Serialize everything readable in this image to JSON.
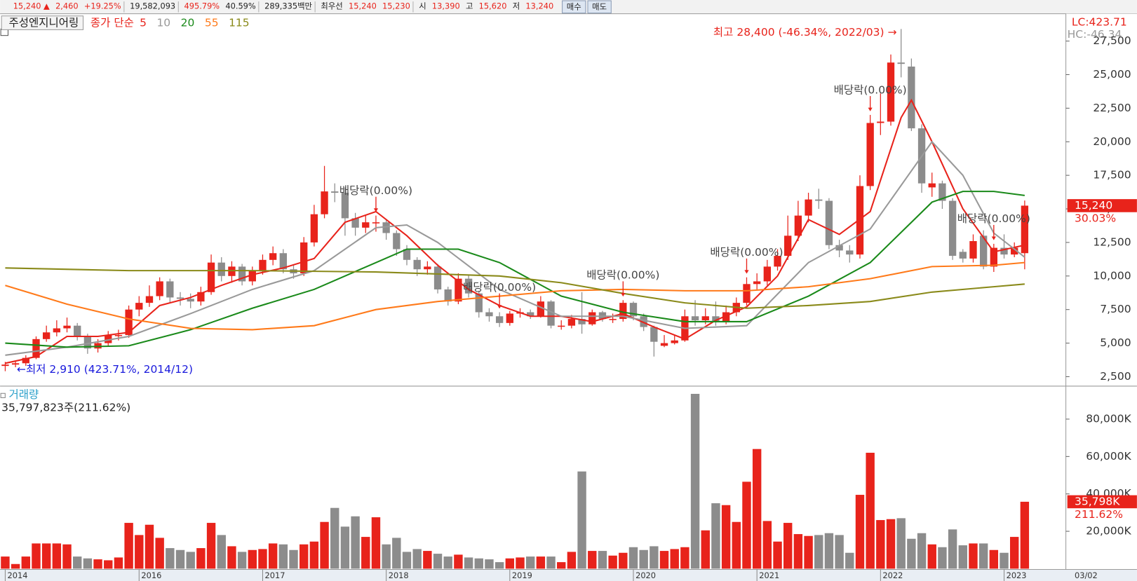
{
  "header": {
    "items": [
      {
        "text": "15,240 ▲",
        "color": "#e8231b"
      },
      {
        "text": "2,460",
        "color": "#e8231b"
      },
      {
        "text": "+19.25%",
        "color": "#e8231b"
      },
      {
        "text": "19,582,093",
        "color": "#222222"
      },
      {
        "text": "495.79%",
        "color": "#e8231b"
      },
      {
        "text": "40.59%",
        "color": "#222222"
      },
      {
        "text": "289,335백만",
        "color": "#222222"
      },
      {
        "text": "최우선",
        "color": "#222222"
      },
      {
        "text": "15,240",
        "color": "#e8231b"
      },
      {
        "text": "15,230",
        "color": "#e8231b"
      },
      {
        "text": "시",
        "color": "#222222"
      },
      {
        "text": "13,390",
        "color": "#e8231b"
      },
      {
        "text": "고",
        "color": "#222222"
      },
      {
        "text": "15,620",
        "color": "#e8231b"
      },
      {
        "text": "저",
        "color": "#222222"
      },
      {
        "text": "13,240",
        "color": "#e8231b"
      }
    ],
    "buttons": [
      "매수",
      "매도"
    ]
  },
  "chart_data": {
    "type": "candlestick",
    "title": "주성엔지니어링",
    "legend_label": "종가 단순",
    "up_color": "#e8231b",
    "down_color": "#8c8c8c",
    "open": [
      3300,
      3400,
      3500,
      3900,
      5300,
      5800,
      6100,
      6300,
      5500,
      4600,
      5000,
      5600,
      5600,
      7500,
      8000,
      8500,
      9600,
      8400,
      8300,
      8100,
      8800,
      11000,
      10000,
      10700,
      9600,
      10400,
      11200,
      11700,
      10500,
      10200,
      12500,
      14600,
      16300,
      16200,
      14300,
      13600,
      14000,
      14000,
      13200,
      12000,
      11200,
      10500,
      10700,
      9000,
      8100,
      9800,
      8700,
      7300,
      7000,
      6500,
      7200,
      7300,
      7000,
      8100,
      6300,
      6300,
      6800,
      6400,
      7300,
      6800,
      6800,
      8000,
      7000,
      6200,
      4800,
      5000,
      5200,
      7000,
      6700,
      7000,
      6600,
      7300,
      8000,
      9400,
      9600,
      10700,
      11500,
      13000,
      14500,
      15700,
      15600,
      12300,
      11900,
      11600,
      16700,
      21400,
      21500,
      25900,
      25600,
      21000,
      16600,
      16900,
      15600,
      11800,
      11300,
      13000,
      10700,
      12100,
      11600,
      11700
    ],
    "high": [
      3600,
      3700,
      4100,
      5500,
      6300,
      6700,
      6900,
      6500,
      5700,
      5300,
      5900,
      6000,
      7800,
      8500,
      9300,
      9900,
      9800,
      8800,
      8700,
      9200,
      11600,
      11400,
      11100,
      10900,
      10700,
      11600,
      12200,
      12000,
      10800,
      12900,
      15300,
      18200,
      16900,
      16600,
      14700,
      14500,
      14500,
      14200,
      13400,
      12300,
      11400,
      11100,
      10900,
      9200,
      10200,
      10100,
      8900,
      7600,
      7300,
      7400,
      7600,
      7500,
      8500,
      8200,
      6700,
      7100,
      8800,
      7500,
      7400,
      7200,
      8200,
      8100,
      7200,
      6300,
      5600,
      5600,
      7500,
      8200,
      7600,
      8100,
      7800,
      8400,
      9900,
      10200,
      11200,
      12000,
      14500,
      15600,
      16200,
      16500,
      15800,
      12700,
      12300,
      17500,
      22000,
      23600,
      26500,
      28400,
      26200,
      21300,
      17700,
      17100,
      15800,
      12000,
      13100,
      13400,
      12400,
      13100,
      12500,
      15620
    ],
    "low": [
      2910,
      3200,
      3300,
      3800,
      5100,
      5500,
      5800,
      5200,
      4200,
      4300,
      4800,
      5200,
      5400,
      7000,
      7700,
      8200,
      8000,
      7800,
      7600,
      7800,
      8600,
      9600,
      9500,
      9300,
      9300,
      10100,
      10800,
      10200,
      9800,
      10000,
      12200,
      14300,
      15500,
      13000,
      13000,
      13200,
      13300,
      12700,
      11500,
      10800,
      10000,
      10100,
      8700,
      7800,
      7900,
      8400,
      6900,
      6600,
      6200,
      6300,
      6900,
      6800,
      6900,
      6100,
      6000,
      6100,
      5700,
      6300,
      6600,
      6500,
      6600,
      6700,
      5900,
      4000,
      4700,
      4900,
      5100,
      6300,
      6400,
      6300,
      6400,
      7000,
      7800,
      9000,
      9300,
      10400,
      11200,
      12600,
      14000,
      15000,
      12000,
      11400,
      11000,
      11300,
      16400,
      20500,
      21200,
      24800,
      20800,
      16200,
      15900,
      15000,
      11200,
      11000,
      11000,
      10500,
      10300,
      11300,
      11400,
      10500
    ],
    "close": [
      3400,
      3500,
      3900,
      5300,
      5800,
      6100,
      6300,
      5500,
      4600,
      5000,
      5600,
      5600,
      7500,
      8000,
      8500,
      9600,
      8400,
      8300,
      8100,
      8800,
      11000,
      10000,
      10700,
      9600,
      10400,
      11200,
      11700,
      10500,
      10200,
      12500,
      14600,
      16300,
      16200,
      14300,
      13600,
      14000,
      14000,
      13200,
      12000,
      11200,
      10500,
      10700,
      9000,
      8100,
      9800,
      8700,
      7300,
      7000,
      6500,
      7200,
      7300,
      7000,
      8100,
      6300,
      6300,
      6800,
      6400,
      7300,
      6800,
      6800,
      8000,
      7000,
      6200,
      5100,
      5000,
      5200,
      7000,
      6700,
      7000,
      6600,
      7300,
      8000,
      9400,
      9600,
      10700,
      11500,
      13000,
      14500,
      15700,
      15600,
      12300,
      11900,
      11600,
      16700,
      21400,
      21500,
      25900,
      25800,
      21000,
      16900,
      16900,
      15600,
      11500,
      11300,
      12600,
      10700,
      12100,
      11600,
      12100,
      15240
    ],
    "current_label": "15,240",
    "current_change": "30.03%",
    "xlim": [
      -0.5,
      103
    ],
    "xticks": [
      {
        "value": 0,
        "label": "2014"
      },
      {
        "value": 13,
        "label": "2016"
      },
      {
        "value": 25,
        "label": "2017"
      },
      {
        "value": 37,
        "label": "2018"
      },
      {
        "value": 49,
        "label": "2019"
      },
      {
        "value": 61,
        "label": "2020"
      },
      {
        "value": 73,
        "label": "2021"
      },
      {
        "value": 85,
        "label": "2022"
      },
      {
        "value": 97,
        "label": "2023"
      }
    ],
    "date_label": "03/02",
    "ylim": [
      1850,
      29480
    ],
    "yticks": [
      {
        "value": 2500,
        "label": "2,500"
      },
      {
        "value": 5000,
        "label": "5,000"
      },
      {
        "value": 7500,
        "label": "7,500"
      },
      {
        "value": 10000,
        "label": "10,000"
      },
      {
        "value": 12500,
        "label": "12,500"
      },
      {
        "value": 15000,
        "label": "15,000"
      },
      {
        "value": 17500,
        "label": "17,500"
      },
      {
        "value": 20000,
        "label": "20,000"
      },
      {
        "value": 22500,
        "label": "22,500"
      },
      {
        "value": 25000,
        "label": "25,000"
      },
      {
        "value": 27500,
        "label": "27,500"
      }
    ],
    "lc_label": "LC:423.71",
    "hc_label": "HC:-46.34",
    "moving_averages": [
      {
        "name": "5",
        "color": "#e8231b",
        "x": [
          0,
          3,
          6,
          9,
          12,
          15,
          18,
          21,
          24,
          27,
          30,
          33,
          36,
          39,
          42,
          45,
          48,
          51,
          54,
          57,
          60,
          63,
          66,
          69,
          72,
          75,
          78,
          81,
          84,
          87,
          88,
          90,
          93,
          96,
          99
        ],
        "values": [
          3500,
          4000,
          5500,
          5500,
          5800,
          7800,
          8400,
          9300,
          10100,
          10600,
          11300,
          14000,
          14800,
          13000,
          10800,
          9000,
          7800,
          7000,
          7000,
          6600,
          7200,
          6200,
          5300,
          6700,
          7700,
          10000,
          14200,
          13100,
          14800,
          21800,
          23100,
          20000,
          15000,
          11800,
          12300
        ]
      },
      {
        "name": "10",
        "color": "#999999",
        "x": [
          0,
          6,
          12,
          18,
          24,
          30,
          36,
          39,
          42,
          48,
          54,
          60,
          66,
          72,
          78,
          84,
          90,
          93,
          96,
          99
        ],
        "values": [
          4100,
          4700,
          5500,
          7200,
          9000,
          10400,
          13600,
          13800,
          12500,
          9000,
          7000,
          7000,
          6100,
          6300,
          11000,
          13500,
          20000,
          17500,
          13200,
          11400
        ]
      },
      {
        "name": "20",
        "color": "#1a8a1a",
        "x": [
          0,
          6,
          12,
          18,
          24,
          30,
          36,
          39,
          44,
          48,
          54,
          60,
          66,
          72,
          78,
          84,
          90,
          93,
          96,
          99
        ],
        "values": [
          5000,
          4700,
          4800,
          6000,
          7600,
          9000,
          11000,
          12000,
          12000,
          11000,
          8500,
          7300,
          6600,
          6600,
          8500,
          11000,
          15500,
          16300,
          16300,
          16000
        ]
      },
      {
        "name": "55",
        "color": "#ff7a1a",
        "x": [
          0,
          6,
          12,
          18,
          24,
          30,
          36,
          42,
          48,
          54,
          60,
          66,
          72,
          78,
          84,
          90,
          96,
          99
        ],
        "values": [
          9300,
          7900,
          6800,
          6100,
          6000,
          6300,
          7500,
          8100,
          8500,
          8900,
          9000,
          8900,
          8900,
          9200,
          9800,
          10700,
          10800,
          11000
        ]
      },
      {
        "name": "115",
        "color": "#8a8a1a",
        "x": [
          0,
          12,
          24,
          36,
          48,
          54,
          60,
          66,
          72,
          78,
          84,
          90,
          96,
          99
        ],
        "values": [
          10600,
          10400,
          10400,
          10300,
          10000,
          9500,
          8700,
          8000,
          7600,
          7800,
          8100,
          8800,
          9200,
          9400
        ]
      }
    ],
    "high_mark": {
      "label": "최고 28,400 (-46.34%, 2022/03) →",
      "x": 87,
      "color": "#e8231b"
    },
    "low_mark": {
      "label": "←최저 2,910 (423.71%, 2014/12)",
      "x": 0,
      "color": "#1a1adc"
    },
    "dividend_marks": [
      {
        "label": "배당락(0.00%)",
        "x": 36
      },
      {
        "label": "배당락(0.00%)",
        "x": 48
      },
      {
        "label": "배당락(0.00%)",
        "x": 60
      },
      {
        "label": "배당락(0.00%)",
        "x": 72
      },
      {
        "label": "배당락(0.00%)",
        "x": 84
      },
      {
        "label": "배당락(0.00%)",
        "x": 96
      }
    ],
    "volume": {
      "title": "거래량",
      "summary": "35,797,823주(211.62%)",
      "values": [
        6500,
        2500,
        6500,
        13500,
        13500,
        13500,
        13000,
        6500,
        5500,
        5000,
        4500,
        6000,
        24500,
        18000,
        23500,
        16500,
        11000,
        10000,
        9000,
        11000,
        24500,
        18000,
        12000,
        9000,
        10000,
        10500,
        13500,
        13000,
        10000,
        13000,
        14500,
        25000,
        32500,
        22500,
        28000,
        17000,
        27500,
        13000,
        16500,
        9000,
        10500,
        9500,
        8000,
        6500,
        7500,
        6000,
        5500,
        5000,
        3500,
        5500,
        6000,
        6500,
        6500,
        6500,
        3500,
        9000,
        52000,
        9500,
        9500,
        7000,
        8500,
        11500,
        10000,
        12000,
        9500,
        10500,
        11500,
        93500,
        20500,
        35000,
        34000,
        25000,
        46500,
        64000,
        25500,
        14500,
        24500,
        18500,
        17500,
        18000,
        19000,
        18000,
        8500,
        39500,
        62000,
        26000,
        26500,
        27000,
        16000,
        19000,
        13000,
        11500,
        21000,
        12500,
        13500,
        13500,
        10000,
        8500,
        17000,
        35798
      ],
      "current_label": "35,798K",
      "current_change": "211.62%",
      "ylim": [
        0,
        96860
      ],
      "yticks": [
        {
          "value": 20000,
          "label": "20,000K"
        },
        {
          "value": 40000,
          "label": "40,000K"
        },
        {
          "value": 60000,
          "label": "60,000K"
        },
        {
          "value": 80000,
          "label": "80,000K"
        }
      ]
    }
  }
}
